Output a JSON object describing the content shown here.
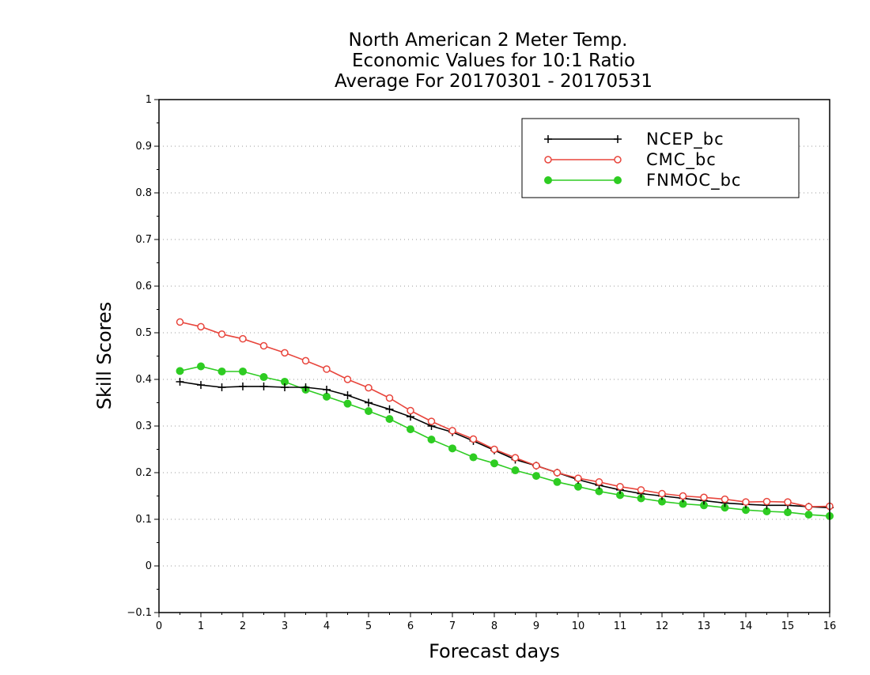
{
  "chart_data": {
    "type": "line",
    "title_lines": [
      "North American 2 Meter Temp.",
      "Economic Values for 10:1 Ratio",
      "Average For 20170301 - 20170531"
    ],
    "xlabel": "Forecast days",
    "ylabel": "Skill Scores",
    "xlim": [
      0,
      16
    ],
    "ylim": [
      -0.1,
      1
    ],
    "x_ticks": [
      0,
      1,
      2,
      3,
      4,
      5,
      6,
      7,
      8,
      9,
      10,
      11,
      12,
      13,
      14,
      15,
      16
    ],
    "y_ticks": [
      -0.1,
      0,
      0.1,
      0.2,
      0.3,
      0.4,
      0.5,
      0.6,
      0.7,
      0.8,
      0.9,
      1
    ],
    "y_tick_labels": [
      "−0.1",
      "0",
      "0.1",
      "0.2",
      "0.3",
      "0.4",
      "0.5",
      "0.6",
      "0.7",
      "0.8",
      "0.9",
      "1"
    ],
    "grid": "horizontal dotted",
    "legend_position": "top-right",
    "x": [
      0.5,
      1,
      1.5,
      2,
      2.5,
      3,
      3.5,
      4,
      4.5,
      5,
      5.5,
      6,
      6.5,
      7,
      7.5,
      8,
      8.5,
      9,
      9.5,
      10,
      10.5,
      11,
      11.5,
      12,
      12.5,
      13,
      13.5,
      14,
      14.5,
      15,
      15.5,
      16
    ],
    "series": [
      {
        "name": "NCEP_bc",
        "color": "#000000",
        "marker": "plus",
        "values": [
          0.395,
          0.388,
          0.383,
          0.385,
          0.385,
          0.383,
          0.383,
          0.378,
          0.366,
          0.35,
          0.336,
          0.32,
          0.3,
          0.287,
          0.268,
          0.248,
          0.228,
          0.215,
          0.2,
          0.185,
          0.173,
          0.163,
          0.155,
          0.15,
          0.145,
          0.14,
          0.135,
          0.132,
          0.13,
          0.13,
          0.127,
          0.125
        ]
      },
      {
        "name": "CMC_bc",
        "color": "#e8453c",
        "marker": "open-circle",
        "values": [
          0.523,
          0.513,
          0.497,
          0.487,
          0.472,
          0.457,
          0.44,
          0.422,
          0.4,
          0.382,
          0.36,
          0.333,
          0.31,
          0.29,
          0.272,
          0.25,
          0.232,
          0.215,
          0.2,
          0.188,
          0.18,
          0.17,
          0.163,
          0.155,
          0.15,
          0.147,
          0.143,
          0.137,
          0.138,
          0.137,
          0.127,
          0.128
        ]
      },
      {
        "name": "FNMOC_bc",
        "color": "#2ecc22",
        "marker": "filled-circle",
        "values": [
          0.418,
          0.428,
          0.417,
          0.417,
          0.405,
          0.395,
          0.378,
          0.363,
          0.348,
          0.332,
          0.315,
          0.293,
          0.271,
          0.252,
          0.233,
          0.22,
          0.205,
          0.193,
          0.18,
          0.17,
          0.16,
          0.152,
          0.145,
          0.138,
          0.133,
          0.13,
          0.125,
          0.12,
          0.117,
          0.115,
          0.11,
          0.107
        ]
      }
    ]
  }
}
